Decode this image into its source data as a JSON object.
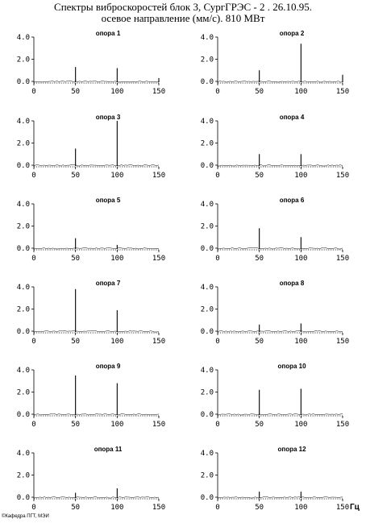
{
  "title": {
    "line1": "Спектры виброскоростей блок 3, СургГРЭС - 2 . 26.10.95.",
    "line2": "осевое  направление (мм/с).  810 МВт"
  },
  "x_unit": "Гц",
  "credit": "©Кафедра ПГТ, МЭИ",
  "chart_data": [
    {
      "type": "line",
      "title": "опора 1",
      "xlim": [
        0,
        150
      ],
      "ylim": [
        0,
        4
      ],
      "x_ticks": [
        "0",
        "50",
        "100",
        "150"
      ],
      "y_ticks": [
        "0.0",
        "2.0",
        "4.0"
      ],
      "peaks": [
        {
          "x": 50,
          "y": 1.3
        },
        {
          "x": 100,
          "y": 1.2
        },
        {
          "x": 150,
          "y": 0.3
        }
      ]
    },
    {
      "type": "line",
      "title": "опора 2",
      "xlim": [
        0,
        150
      ],
      "ylim": [
        0,
        4
      ],
      "x_ticks": [
        "0",
        "50",
        "100",
        "150"
      ],
      "y_ticks": [
        "0.0",
        "2.0",
        "4.0"
      ],
      "peaks": [
        {
          "x": 50,
          "y": 1.0
        },
        {
          "x": 100,
          "y": 3.4
        },
        {
          "x": 150,
          "y": 0.6
        }
      ]
    },
    {
      "type": "line",
      "title": "опора 3",
      "xlim": [
        0,
        150
      ],
      "ylim": [
        0,
        4
      ],
      "x_ticks": [
        "0",
        "50",
        "100",
        "150"
      ],
      "y_ticks": [
        "0.0",
        "2.0",
        "4.0"
      ],
      "peaks": [
        {
          "x": 50,
          "y": 1.5
        },
        {
          "x": 100,
          "y": 4.0
        }
      ]
    },
    {
      "type": "line",
      "title": "опора 4",
      "xlim": [
        0,
        150
      ],
      "ylim": [
        0,
        4
      ],
      "x_ticks": [
        "0",
        "50",
        "100",
        "150"
      ],
      "y_ticks": [
        "0.0",
        "2.0",
        "4.0"
      ],
      "peaks": [
        {
          "x": 50,
          "y": 1.0
        },
        {
          "x": 100,
          "y": 1.0
        }
      ]
    },
    {
      "type": "line",
      "title": "опора 5",
      "xlim": [
        0,
        150
      ],
      "ylim": [
        0,
        4
      ],
      "x_ticks": [
        "0",
        "50",
        "100",
        "150"
      ],
      "y_ticks": [
        "0.0",
        "2.0",
        "4.0"
      ],
      "peaks": [
        {
          "x": 50,
          "y": 0.9
        },
        {
          "x": 100,
          "y": 0.3
        }
      ]
    },
    {
      "type": "line",
      "title": "опора 6",
      "xlim": [
        0,
        150
      ],
      "ylim": [
        0,
        4
      ],
      "x_ticks": [
        "0",
        "50",
        "100",
        "150"
      ],
      "y_ticks": [
        "0.0",
        "2.0",
        "4.0"
      ],
      "peaks": [
        {
          "x": 50,
          "y": 1.8
        },
        {
          "x": 100,
          "y": 1.0
        }
      ]
    },
    {
      "type": "line",
      "title": "опора 7",
      "xlim": [
        0,
        150
      ],
      "ylim": [
        0,
        4
      ],
      "x_ticks": [
        "0",
        "50",
        "100",
        "150"
      ],
      "y_ticks": [
        "0.0",
        "2.0",
        "4.0"
      ],
      "peaks": [
        {
          "x": 50,
          "y": 3.8
        },
        {
          "x": 100,
          "y": 1.9
        }
      ]
    },
    {
      "type": "line",
      "title": "опора 8",
      "xlim": [
        0,
        150
      ],
      "ylim": [
        0,
        4
      ],
      "x_ticks": [
        "0",
        "50",
        "100",
        "150"
      ],
      "y_ticks": [
        "0.0",
        "2.0",
        "4.0"
      ],
      "peaks": [
        {
          "x": 50,
          "y": 0.6
        },
        {
          "x": 100,
          "y": 0.7
        }
      ]
    },
    {
      "type": "line",
      "title": "опора 9",
      "xlim": [
        0,
        150
      ],
      "ylim": [
        0,
        4
      ],
      "x_ticks": [
        "0",
        "50",
        "100",
        "150"
      ],
      "y_ticks": [
        "0.0",
        "2.0",
        "4.0"
      ],
      "peaks": [
        {
          "x": 50,
          "y": 3.5
        },
        {
          "x": 100,
          "y": 2.8
        }
      ]
    },
    {
      "type": "line",
      "title": "опора 10",
      "xlim": [
        0,
        150
      ],
      "ylim": [
        0,
        4
      ],
      "x_ticks": [
        "0",
        "50",
        "100",
        "150"
      ],
      "y_ticks": [
        "0.0",
        "2.0",
        "4.0"
      ],
      "peaks": [
        {
          "x": 50,
          "y": 2.2
        },
        {
          "x": 100,
          "y": 2.3
        }
      ]
    },
    {
      "type": "line",
      "title": "опора 11",
      "xlim": [
        0,
        150
      ],
      "ylim": [
        0,
        4
      ],
      "x_ticks": [
        "0",
        "50",
        "100",
        "150"
      ],
      "y_ticks": [
        "0.0",
        "2.0",
        "4.0"
      ],
      "peaks": [
        {
          "x": 50,
          "y": 0.4
        },
        {
          "x": 100,
          "y": 0.8
        }
      ]
    },
    {
      "type": "line",
      "title": "опора 12",
      "xlim": [
        0,
        150
      ],
      "ylim": [
        0,
        4
      ],
      "x_ticks": [
        "0",
        "50",
        "100",
        "150"
      ],
      "y_ticks": [
        "0.0",
        "2.0",
        "4.0"
      ],
      "peaks": [
        {
          "x": 50,
          "y": 0.5
        },
        {
          "x": 100,
          "y": 0.5
        }
      ]
    }
  ]
}
